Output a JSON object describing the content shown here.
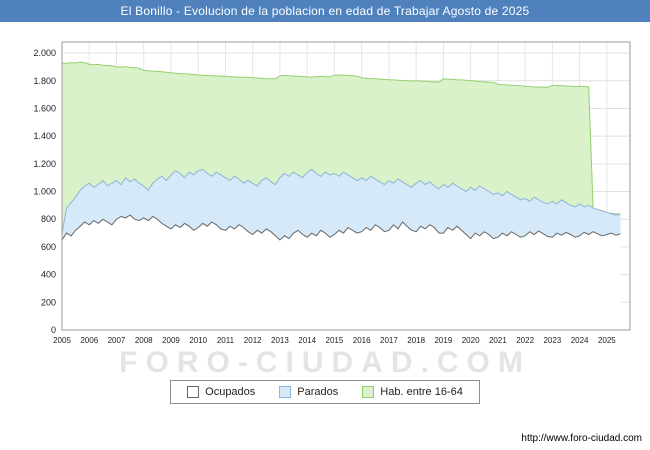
{
  "title_bar": {
    "text": "El Bonillo - Evolucion de la poblacion en edad de Trabajar Agosto de 2025",
    "bg": "#4f81bd"
  },
  "watermark": "FORO-CIUDAD.COM",
  "footer": {
    "url": "http://www.foro-ciudad.com"
  },
  "chart_data": {
    "type": "area",
    "title": "El Bonillo - Evolucion de la poblacion en edad de Trabajar Agosto de 2025",
    "x_start": 2005,
    "x_step_years": 0.16667,
    "x_tick_labels": [
      "2005",
      "2006",
      "2007",
      "2008",
      "2009",
      "2010",
      "2011",
      "2012",
      "2013",
      "2014",
      "2015",
      "2016",
      "2017",
      "2018",
      "2019",
      "2020",
      "2021",
      "2022",
      "2023",
      "2024",
      "2025"
    ],
    "ylim": [
      0,
      2000
    ],
    "y_tick_step": 200,
    "y_tick_labels": [
      "0",
      "200",
      "400",
      "600",
      "800",
      "1.000",
      "1.200",
      "1.400",
      "1.600",
      "1.800",
      "2.000"
    ],
    "grid": true,
    "legend_position": "bottom",
    "series": [
      {
        "name": "Ocupados",
        "fill": "#ffffff",
        "stroke": "#666666",
        "values": [
          650,
          700,
          680,
          720,
          750,
          780,
          760,
          790,
          770,
          800,
          780,
          760,
          800,
          820,
          810,
          830,
          800,
          790,
          810,
          790,
          820,
          800,
          770,
          750,
          730,
          760,
          740,
          770,
          750,
          720,
          740,
          770,
          750,
          780,
          760,
          730,
          720,
          750,
          730,
          760,
          740,
          710,
          690,
          720,
          700,
          730,
          710,
          680,
          650,
          680,
          660,
          700,
          720,
          690,
          670,
          700,
          680,
          720,
          700,
          670,
          690,
          720,
          700,
          740,
          720,
          700,
          710,
          740,
          720,
          760,
          740,
          710,
          720,
          760,
          730,
          780,
          750,
          720,
          710,
          750,
          730,
          760,
          740,
          700,
          700,
          740,
          720,
          750,
          720,
          690,
          660,
          700,
          680,
          710,
          690,
          660,
          670,
          700,
          680,
          710,
          690,
          670,
          680,
          710,
          690,
          715,
          695,
          675,
          670,
          700,
          685,
          705,
          690,
          670,
          680,
          705,
          690,
          710,
          695,
          680,
          690,
          700,
          685,
          695
        ]
      },
      {
        "name": "Parados",
        "fill": "#d6e9f8",
        "stroke": "#8cb4d6",
        "values": [
          700,
          880,
          920,
          960,
          1010,
          1040,
          1060,
          1030,
          1050,
          1080,
          1040,
          1060,
          1080,
          1050,
          1100,
          1070,
          1090,
          1060,
          1040,
          1010,
          1060,
          1090,
          1110,
          1080,
          1120,
          1150,
          1130,
          1100,
          1140,
          1120,
          1150,
          1160,
          1130,
          1110,
          1140,
          1120,
          1100,
          1080,
          1110,
          1090,
          1060,
          1080,
          1060,
          1040,
          1080,
          1100,
          1070,
          1050,
          1100,
          1130,
          1110,
          1140,
          1120,
          1100,
          1140,
          1160,
          1130,
          1110,
          1140,
          1120,
          1130,
          1110,
          1140,
          1120,
          1100,
          1080,
          1100,
          1080,
          1110,
          1090,
          1070,
          1050,
          1080,
          1060,
          1090,
          1070,
          1050,
          1030,
          1060,
          1080,
          1050,
          1070,
          1040,
          1020,
          1050,
          1030,
          1060,
          1040,
          1020,
          1000,
          1030,
          1010,
          1040,
          1020,
          1000,
          980,
          990,
          970,
          1000,
          980,
          960,
          940,
          950,
          930,
          960,
          940,
          920,
          910,
          930,
          910,
          940,
          920,
          900,
          890,
          910,
          890,
          900,
          880,
          870,
          860,
          850,
          840,
          830,
          835
        ]
      },
      {
        "name": "Hab. entre 16-64",
        "fill": "#d9f2c9",
        "stroke": "#94cf70",
        "values": [
          1930,
          1925,
          1932,
          1928,
          1935,
          1930,
          1920,
          1915,
          1918,
          1912,
          1910,
          1908,
          1900,
          1898,
          1902,
          1896,
          1894,
          1890,
          1875,
          1872,
          1870,
          1868,
          1865,
          1862,
          1858,
          1855,
          1852,
          1850,
          1848,
          1845,
          1842,
          1840,
          1838,
          1836,
          1835,
          1834,
          1832,
          1830,
          1828,
          1826,
          1825,
          1824,
          1822,
          1820,
          1818,
          1816,
          1815,
          1814,
          1835,
          1838,
          1836,
          1834,
          1832,
          1830,
          1828,
          1826,
          1830,
          1832,
          1830,
          1828,
          1840,
          1842,
          1840,
          1838,
          1836,
          1834,
          1820,
          1818,
          1816,
          1814,
          1812,
          1810,
          1808,
          1806,
          1804,
          1802,
          1800,
          1798,
          1800,
          1798,
          1796,
          1794,
          1792,
          1790,
          1815,
          1812,
          1810,
          1808,
          1806,
          1804,
          1800,
          1798,
          1795,
          1792,
          1790,
          1788,
          1775,
          1772,
          1770,
          1768,
          1766,
          1764,
          1760,
          1758,
          1756,
          1755,
          1754,
          1753,
          1768,
          1766,
          1764,
          1762,
          1760,
          1758,
          1760,
          1758,
          1756,
          860,
          855,
          850,
          845,
          842,
          840,
          838
        ]
      }
    ]
  }
}
